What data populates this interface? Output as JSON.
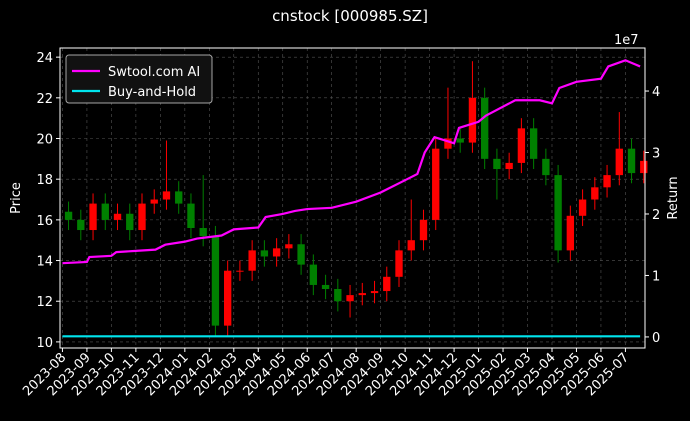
{
  "chart_data": {
    "type": "candlestick",
    "title": "cnstock [000985.SZ]",
    "ylabel": "Price",
    "y2label": "Return",
    "y2_offset_label": "1e7",
    "grid": true,
    "legend": "upper left",
    "up_color": "#ff0000",
    "down_color": "#008000",
    "xlim": [
      -0.1,
      23.8
    ],
    "xticks": [
      {
        "value": 0,
        "label": "2023-08"
      },
      {
        "value": 1,
        "label": "2023-09"
      },
      {
        "value": 2,
        "label": "2023-10"
      },
      {
        "value": 3,
        "label": "2023-11"
      },
      {
        "value": 4,
        "label": "2023-12"
      },
      {
        "value": 5,
        "label": "2024-01"
      },
      {
        "value": 6,
        "label": "2024-02"
      },
      {
        "value": 7,
        "label": "2024-03"
      },
      {
        "value": 8,
        "label": "2024-04"
      },
      {
        "value": 9,
        "label": "2024-05"
      },
      {
        "value": 10,
        "label": "2024-06"
      },
      {
        "value": 11,
        "label": "2024-07"
      },
      {
        "value": 12,
        "label": "2024-08"
      },
      {
        "value": 13,
        "label": "2024-09"
      },
      {
        "value": 14,
        "label": "2024-10"
      },
      {
        "value": 15,
        "label": "2024-11"
      },
      {
        "value": 16,
        "label": "2024-12"
      },
      {
        "value": 17,
        "label": "2025-01"
      },
      {
        "value": 18,
        "label": "2025-02"
      },
      {
        "value": 19,
        "label": "2025-03"
      },
      {
        "value": 20,
        "label": "2025-04"
      },
      {
        "value": 21,
        "label": "2025-05"
      },
      {
        "value": 22,
        "label": "2025-06"
      },
      {
        "value": 23,
        "label": "2025-07"
      }
    ],
    "ylim": [
      9.7,
      24.45
    ],
    "yticks": [
      10,
      12,
      14,
      16,
      18,
      20,
      22,
      24
    ],
    "y2lim": [
      -0.18,
      4.7
    ],
    "y2ticks": [
      0,
      1,
      2,
      3,
      4
    ],
    "candles": {
      "x": [
        0.25,
        0.75,
        1.25,
        1.75,
        2.25,
        2.75,
        3.25,
        3.75,
        4.25,
        4.75,
        5.25,
        5.75,
        6.25,
        6.75,
        7.25,
        7.75,
        8.25,
        8.75,
        9.25,
        9.75,
        10.25,
        10.75,
        11.25,
        11.75,
        12.25,
        12.75,
        13.25,
        13.75,
        14.25,
        14.75,
        15.25,
        15.75,
        16.25,
        16.75,
        17.25,
        17.75,
        18.25,
        18.75,
        19.25,
        19.75,
        20.25,
        20.75,
        21.25,
        21.75,
        22.25,
        22.75,
        23.25,
        23.75
      ],
      "open": [
        16.4,
        16.0,
        15.5,
        16.8,
        16.0,
        16.3,
        15.5,
        16.8,
        17.0,
        17.4,
        16.8,
        15.6,
        15.2,
        10.8,
        13.5,
        13.5,
        14.5,
        14.2,
        14.6,
        14.8,
        13.8,
        12.8,
        12.6,
        12.0,
        12.3,
        12.4,
        12.5,
        13.2,
        14.5,
        15.0,
        16.0,
        19.5,
        20.0,
        19.8,
        22.0,
        19.0,
        18.5,
        18.8,
        20.5,
        19.0,
        18.2,
        14.5,
        16.2,
        17.0,
        17.6,
        18.2,
        19.5,
        18.3
      ],
      "high": [
        16.9,
        16.5,
        17.3,
        17.3,
        16.8,
        16.8,
        17.3,
        17.5,
        19.9,
        17.9,
        17.3,
        18.2,
        15.7,
        14.0,
        14.0,
        15.0,
        15.0,
        15.1,
        15.3,
        15.3,
        14.3,
        13.3,
        13.1,
        12.8,
        12.9,
        13.0,
        13.7,
        15.0,
        17.0,
        16.5,
        20.0,
        22.5,
        20.5,
        23.8,
        22.5,
        19.5,
        19.3,
        21.0,
        21.0,
        19.5,
        18.7,
        16.7,
        17.5,
        18.1,
        18.7,
        21.3,
        20.0,
        19.4
      ],
      "low": [
        15.5,
        15.0,
        15.0,
        15.5,
        15.5,
        15.0,
        15.0,
        16.3,
        16.5,
        16.3,
        15.1,
        14.7,
        10.3,
        10.3,
        13.0,
        13.0,
        13.7,
        13.7,
        14.1,
        13.3,
        12.3,
        12.1,
        11.5,
        11.2,
        11.8,
        11.9,
        12.0,
        12.7,
        14.0,
        14.5,
        15.5,
        19.0,
        19.3,
        19.3,
        18.5,
        17.0,
        18.0,
        18.3,
        18.5,
        17.7,
        13.9,
        14.0,
        15.7,
        16.5,
        17.1,
        17.7,
        17.8,
        17.8
      ],
      "close": [
        16.0,
        15.5,
        16.8,
        16.0,
        16.3,
        15.5,
        16.8,
        17.0,
        17.4,
        16.8,
        15.6,
        15.2,
        10.8,
        13.5,
        13.5,
        14.5,
        14.2,
        14.6,
        14.8,
        13.8,
        12.8,
        12.6,
        12.0,
        12.3,
        12.4,
        12.5,
        13.2,
        14.5,
        15.0,
        16.0,
        19.5,
        20.0,
        19.8,
        22.0,
        19.0,
        18.5,
        18.8,
        20.5,
        19.0,
        18.2,
        14.5,
        16.2,
        17.0,
        17.6,
        18.2,
        19.5,
        18.3,
        18.9
      ]
    },
    "series": [
      {
        "name": "Swtool.com AI",
        "color": "#ff00ff",
        "axis": "y2",
        "x": [
          0,
          1.0,
          1.1,
          2,
          2.2,
          3,
          3.8,
          4.2,
          5,
          5.5,
          6.5,
          7,
          8,
          8.3,
          9,
          9.5,
          10,
          11,
          12,
          13,
          14,
          14.5,
          14.8,
          15.2,
          15.6,
          16,
          16.2,
          17,
          17.3,
          18.5,
          19.5,
          20,
          20.3,
          21,
          22,
          22.3,
          23,
          23.3,
          23.6
        ],
        "values": [
          1.2,
          1.22,
          1.3,
          1.32,
          1.38,
          1.4,
          1.42,
          1.5,
          1.55,
          1.6,
          1.65,
          1.75,
          1.78,
          1.95,
          2.0,
          2.05,
          2.08,
          2.1,
          2.2,
          2.35,
          2.55,
          2.65,
          3.0,
          3.25,
          3.2,
          3.15,
          3.4,
          3.5,
          3.6,
          3.85,
          3.85,
          3.8,
          4.05,
          4.15,
          4.2,
          4.4,
          4.5,
          4.45,
          4.4
        ]
      },
      {
        "name": "Buy-and-Hold",
        "color": "#00e5ee",
        "axis": "y2",
        "x": [
          0,
          23.6
        ],
        "values": [
          0.01,
          0.01
        ]
      }
    ]
  }
}
